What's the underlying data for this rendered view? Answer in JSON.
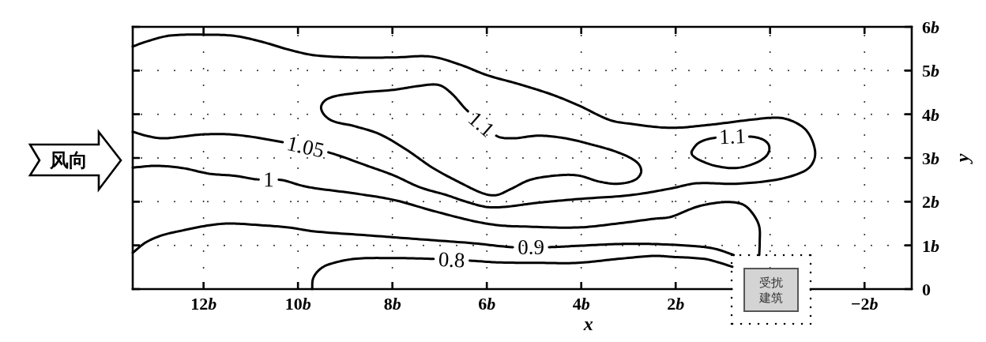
{
  "chart_data": {
    "type": "line",
    "xlabel": "x",
    "ylabel": "y",
    "xlim": [
      13.5,
      -3
    ],
    "ylim": [
      0,
      6
    ],
    "xticks": [
      {
        "value": 12,
        "label": "12b"
      },
      {
        "value": 10,
        "label": "10b"
      },
      {
        "value": 8,
        "label": "8b"
      },
      {
        "value": 6,
        "label": "6b"
      },
      {
        "value": 4,
        "label": "4b"
      },
      {
        "value": 2,
        "label": "2b"
      },
      {
        "value": 0,
        "label": null
      },
      {
        "value": -2,
        "label": "−2b"
      }
    ],
    "yticks": [
      0,
      {
        "value": 1,
        "label": "1b"
      },
      {
        "value": 2,
        "label": "2b"
      },
      {
        "value": 3,
        "label": "3b"
      },
      {
        "value": 4,
        "label": "4b"
      },
      {
        "value": 5,
        "label": "5b"
      },
      {
        "value": 6,
        "label": "6b"
      }
    ],
    "grid": true,
    "line_style": "solid",
    "series": [
      {
        "name": "1.05",
        "color": "#000000",
        "x": [
          13.5,
          13.22,
          12.71,
          11.88,
          11.32,
          10.77,
          10.2,
          9.65,
          8.81,
          7.97,
          7.19,
          6.58,
          6.01,
          5.29,
          4.62,
          4.07,
          3.4,
          2.95,
          2.11,
          1.27,
          0.44,
          -0.18,
          -0.52,
          -0.79,
          -0.95,
          -0.9,
          -0.69,
          -0.12,
          0.72,
          1.56,
          2.11,
          2.95,
          4.07,
          4.96,
          5.63,
          6.01,
          6.47,
          6.85,
          7.42,
          7.97,
          8.53,
          9.36,
          10.32,
          11.32,
          11.99,
          12.45,
          12.88,
          13.22,
          13.5
        ],
        "values": [
          5.55,
          5.66,
          5.8,
          5.82,
          5.79,
          5.66,
          5.48,
          5.35,
          5.3,
          5.3,
          5.32,
          5.14,
          4.9,
          4.68,
          4.45,
          4.21,
          3.87,
          3.78,
          3.69,
          3.76,
          3.87,
          3.92,
          3.82,
          3.6,
          3.18,
          2.88,
          2.68,
          2.5,
          2.41,
          2.42,
          2.3,
          2.15,
          2.06,
          1.97,
          1.88,
          1.88,
          2.01,
          2.15,
          2.33,
          2.6,
          2.82,
          3.13,
          3.36,
          3.53,
          3.54,
          3.49,
          3.45,
          3.51,
          3.6
        ]
      },
      {
        "name": "1",
        "color": "#000000",
        "x": [
          13.5,
          13.0,
          12.45,
          11.88,
          11.32,
          10.87,
          10.37,
          9.93,
          9.65,
          8.81,
          7.97,
          7.14,
          6.3,
          5.75,
          5.18,
          4.07,
          3.23,
          2.45,
          2.11,
          1.56,
          1.16,
          0.82,
          0.55,
          0.35,
          0.23,
          0.22,
          0.23
        ],
        "values": [
          2.78,
          2.82,
          2.77,
          2.64,
          2.59,
          2.51,
          2.5,
          2.37,
          2.31,
          2.19,
          2.04,
          1.79,
          1.56,
          1.46,
          1.43,
          1.41,
          1.5,
          1.61,
          1.65,
          1.88,
          1.97,
          1.99,
          1.92,
          1.7,
          1.43,
          1.07,
          0.78
        ]
      },
      {
        "name": "0.9",
        "color": "#000000",
        "x": [
          13.5,
          13.22,
          12.88,
          12.45,
          11.88,
          11.44,
          10.77,
          10.2,
          9.65,
          8.53,
          7.42,
          6.3,
          5.46,
          4.67,
          4.07,
          3.23,
          2.45,
          1.56,
          1.16,
          0.77
        ],
        "values": [
          0.83,
          1.07,
          1.23,
          1.34,
          1.46,
          1.5,
          1.46,
          1.41,
          1.32,
          1.23,
          1.14,
          1.05,
          0.96,
          0.96,
          0.99,
          1.03,
          1.03,
          0.98,
          0.92,
          0.78
        ]
      },
      {
        "name": "0.8",
        "color": "#000000",
        "x": [
          9.7,
          9.68,
          9.56,
          9.36,
          8.81,
          7.97,
          7.14,
          6.35,
          5.75,
          4.91,
          4.07,
          3.23,
          2.45,
          2.11,
          1.39,
          1.06,
          0.8
        ],
        "values": [
          0,
          0.24,
          0.43,
          0.56,
          0.69,
          0.71,
          0.69,
          0.65,
          0.61,
          0.6,
          0.6,
          0.69,
          0.76,
          0.74,
          0.69,
          0.6,
          0.51
        ]
      },
      {
        "name": "1.1",
        "color": "#000000",
        "x": [
          5.8,
          5.46,
          4.91,
          4.34,
          3.79,
          3.23,
          2.83,
          2.73,
          2.86,
          3.23,
          3.62,
          4.07,
          4.51,
          5.08,
          5.51,
          5.8,
          6.08,
          6.52,
          7.14,
          7.69,
          8.26,
          8.81,
          9.31,
          9.51,
          9.36,
          8.81,
          7.97,
          7.42,
          7.02,
          6.75,
          6.42,
          5.8
        ],
        "values": [
          3.51,
          3.45,
          3.51,
          3.45,
          3.31,
          3.13,
          2.91,
          2.69,
          2.5,
          2.41,
          2.46,
          2.6,
          2.6,
          2.5,
          2.28,
          2.15,
          2.19,
          2.41,
          2.77,
          3.18,
          3.54,
          3.73,
          3.87,
          4.14,
          4.36,
          4.48,
          4.56,
          4.65,
          4.67,
          4.48,
          4.09,
          3.51
        ]
      },
      {
        "name": "1.1",
        "color": "#000000",
        "x": [
          0.44,
          0.15,
          0.02,
          0.07,
          0.32,
          0.72,
          1.16,
          1.49,
          1.64,
          1.66,
          1.49,
          1.11,
          0.44
        ],
        "values": [
          3.49,
          3.42,
          3.27,
          3.06,
          2.88,
          2.77,
          2.82,
          2.95,
          3.06,
          3.15,
          3.36,
          3.47,
          3.49
        ]
      }
    ],
    "annotations": [
      "风向",
      "受扰建筑"
    ]
  }
}
